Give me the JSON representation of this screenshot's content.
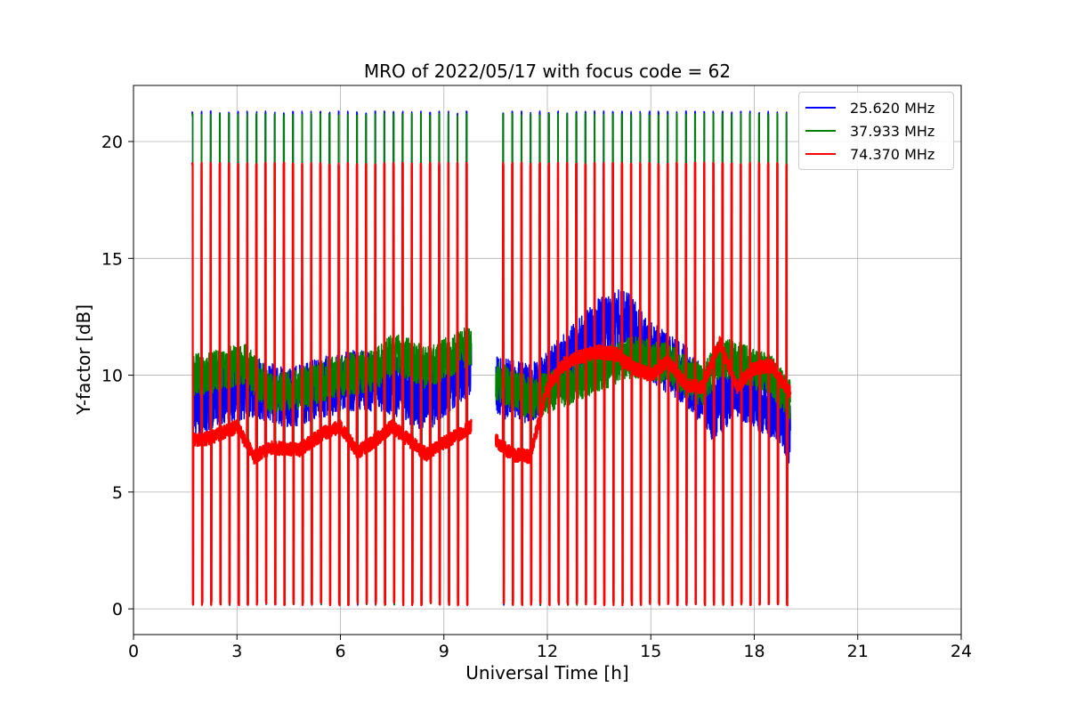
{
  "chart_data": {
    "type": "line",
    "title": "MRO of 2022/05/17 with focus code = 62",
    "xlabel": "Universal Time [h]",
    "ylabel": "Y-factor [dB]",
    "xlim": [
      0,
      24
    ],
    "ylim": [
      -1.1,
      22.4
    ],
    "x_ticks": [
      0,
      3,
      6,
      9,
      12,
      15,
      18,
      21,
      24
    ],
    "y_ticks": [
      0,
      5,
      10,
      15,
      20
    ],
    "grid": true,
    "legend_position": "top-right",
    "data_gap_hours": [
      9.8,
      10.5
    ],
    "calibration_pulses": {
      "start_h": 1.7,
      "end_h": 19.05,
      "period_h": 0.265,
      "high_levels": {
        "25.620 MHz": 21.3,
        "37.933 MHz": 21.2,
        "74.370 MHz": 19.1
      },
      "low_level": 0.25
    },
    "series": [
      {
        "name": "25.620 MHz",
        "color": "#0000ff",
        "x": [
          1.7,
          2.5,
          3.5,
          4.5,
          5.5,
          6.5,
          7.5,
          8.5,
          9.2,
          9.8,
          10.5,
          11.5,
          12.5,
          13.5,
          14.2,
          15.0,
          16.0,
          16.8,
          17.5,
          18.2,
          18.7,
          19.0
        ],
        "y": [
          8.5,
          9.2,
          9.5,
          9.0,
          9.5,
          9.8,
          9.6,
          8.8,
          9.8,
          10.5,
          9.5,
          9.2,
          10.5,
          12.0,
          12.5,
          11.0,
          10.0,
          8.5,
          9.5,
          8.8,
          8.5,
          7.5
        ],
        "spread": 1.3
      },
      {
        "name": "37.933 MHz",
        "color": "#008000",
        "x": [
          1.7,
          2.5,
          3.2,
          4.0,
          5.0,
          6.0,
          7.0,
          7.6,
          8.5,
          9.3,
          9.8,
          10.5,
          11.5,
          12.5,
          13.5,
          14.5,
          15.5,
          16.5,
          17.0,
          17.8,
          18.5,
          19.0
        ],
        "y": [
          10.0,
          10.2,
          10.5,
          9.2,
          9.5,
          10.0,
          10.2,
          11.0,
          10.3,
          10.9,
          11.3,
          9.8,
          9.0,
          9.5,
          10.2,
          10.8,
          10.5,
          9.5,
          10.8,
          10.4,
          10.0,
          9.0
        ],
        "spread": 0.9
      },
      {
        "name": "74.370 MHz",
        "color": "#ff0000",
        "x": [
          1.7,
          2.2,
          3.0,
          3.5,
          4.0,
          4.8,
          5.5,
          6.0,
          6.5,
          7.0,
          7.5,
          8.0,
          8.5,
          9.0,
          9.8,
          10.5,
          11.0,
          11.5,
          12.0,
          12.5,
          13.0,
          13.5,
          14.0,
          14.5,
          15.0,
          15.5,
          16.0,
          16.5,
          17.0,
          17.5,
          18.0,
          18.5,
          19.0
        ],
        "y": [
          7.2,
          7.3,
          7.8,
          6.5,
          6.9,
          6.8,
          7.5,
          7.8,
          6.7,
          7.2,
          7.8,
          7.2,
          6.6,
          7.1,
          7.8,
          7.2,
          6.6,
          6.5,
          9.5,
          10.5,
          10.8,
          11.0,
          10.9,
          10.3,
          10.0,
          10.6,
          9.6,
          9.5,
          11.4,
          9.5,
          10.3,
          10.4,
          9.3
        ],
        "spread": 0.3
      }
    ]
  },
  "legend": {
    "entries": [
      {
        "label": "25.620 MHz",
        "color": "#0000ff"
      },
      {
        "label": "37.933 MHz",
        "color": "#008000"
      },
      {
        "label": "74.370 MHz",
        "color": "#ff0000"
      }
    ]
  }
}
